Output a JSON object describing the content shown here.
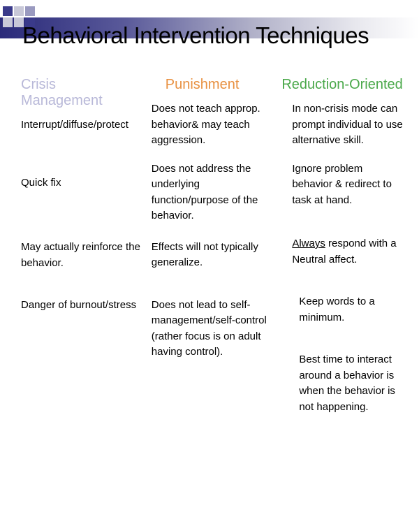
{
  "slide": {
    "title": "Behavioral Intervention Techniques",
    "title_color": "#000000",
    "title_fontsize": 33,
    "background_color": "#ffffff",
    "gradient_colors": [
      "#2a2a7a",
      "#5a5a9a",
      "#b0b0c8",
      "#e8e8ee",
      "#ffffff"
    ],
    "decoration_squares": [
      {
        "color": "#3a3a8a"
      },
      {
        "color": "#c8c8d8"
      },
      {
        "color": "#9a9ac0"
      },
      {
        "color": "#c8c8d8"
      },
      {
        "color": "#c8c8d8"
      },
      {
        "color": "#3a3a8a"
      }
    ],
    "columns": [
      {
        "header": "Crisis Management",
        "header_color": "#b8b8d8",
        "items": [
          "Interrupt/diffuse/protect",
          "Quick fix",
          "May actually reinforce the behavior.",
          "Danger of burnout/stress"
        ]
      },
      {
        "header": "Punishment",
        "header_color": "#e89040",
        "items": [
          "Does not teach approp. behavior& may teach aggression.",
          " Does not address the underlying function/purpose of the behavior.",
          "Effects will not typically generalize.",
          "Does not lead to self-management/self-control (rather focus is on adult having control)."
        ]
      },
      {
        "header": "Reduction-Oriented",
        "header_color": "#4aa84a",
        "items_html": [
          "In non-crisis mode can prompt individual to use alternative skill.",
          "Ignore problem behavior & redirect to task at hand.",
          "<span class='underline'>Always</span> respond with a Neutral affect.",
          "Keep words to a minimum.",
          "Best time to interact around a behavior is when the behavior is not happening."
        ]
      }
    ],
    "body_fontsize": 15,
    "body_color": "#000000",
    "header_fontsize": 20
  }
}
